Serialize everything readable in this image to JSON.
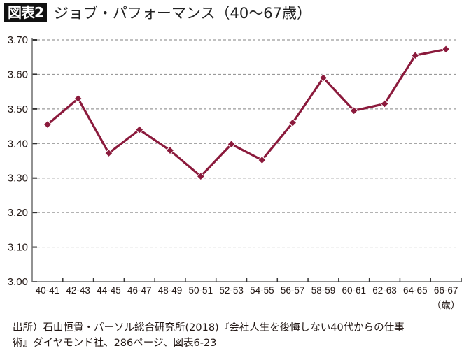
{
  "header": {
    "figure_label": "図表2",
    "title": "ジョブ・パフォーマンス（40〜67歳）"
  },
  "colors": {
    "line": "#8b1a3c",
    "grid": "#9a9a9a",
    "axis": "#6e6e6e"
  },
  "chart_data": {
    "type": "line",
    "title": "ジョブ・パフォーマンス（40〜67歳）",
    "xlabel": "（歳）",
    "ylabel": "",
    "categories": [
      "40-41",
      "42-43",
      "44-45",
      "46-47",
      "48-49",
      "50-51",
      "52-53",
      "54-55",
      "56-57",
      "58-59",
      "60-61",
      "62-63",
      "64-65",
      "66-67"
    ],
    "series": [
      {
        "name": "ジョブ・パフォーマンス",
        "values": [
          3.455,
          3.53,
          3.372,
          3.44,
          3.38,
          3.305,
          3.398,
          3.352,
          3.46,
          3.59,
          3.495,
          3.515,
          3.655,
          3.673
        ]
      }
    ],
    "yticks": [
      "3.00",
      "3.10",
      "3.20",
      "3.30",
      "3.40",
      "3.50",
      "3.60",
      "3.70"
    ],
    "ylim": [
      3.0,
      3.7
    ],
    "grid": true,
    "legend": "none"
  },
  "x_unit": "（歳）",
  "source": {
    "line1": "出所）石山恒貴・パーソル総合研究所(2018)『会社人生を後悔しない40代からの仕事",
    "line2": "術』ダイヤモンド社、286ページ、図表6-23"
  }
}
